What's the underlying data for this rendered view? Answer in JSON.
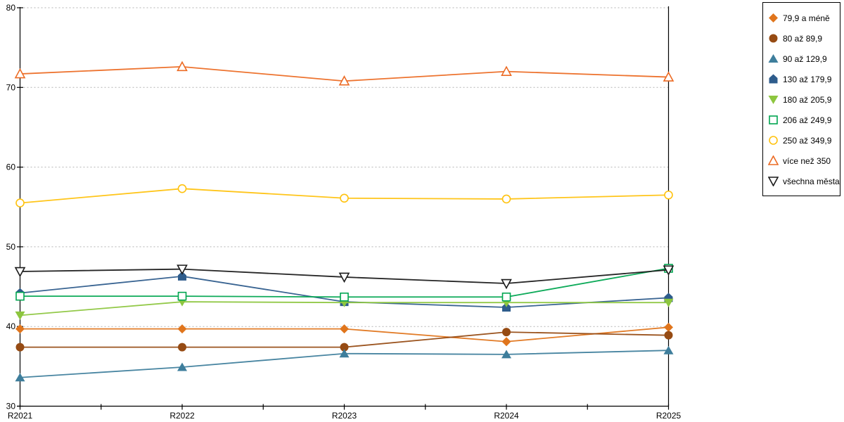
{
  "chart_data": {
    "type": "line",
    "title": "",
    "xlabel": "",
    "ylabel": "",
    "categories": [
      "R2021",
      "R2022",
      "R2023",
      "R2024",
      "R2025"
    ],
    "ylim": [
      30,
      80
    ],
    "yticks": [
      30,
      40,
      50,
      60,
      70,
      80
    ],
    "grid": "horizontal-dotted",
    "gridline_color": "#b3b3b3",
    "axis_color": "#000000",
    "legend_position": "top-right",
    "series": [
      {
        "name": "79,9 a méně",
        "marker": "diamond-filled",
        "color": "#E0751C",
        "values": [
          39.7,
          39.7,
          39.7,
          38.1,
          39.9
        ]
      },
      {
        "name": "80 až 89,9",
        "marker": "circle-filled",
        "color": "#964B13",
        "values": [
          37.4,
          37.4,
          37.4,
          39.3,
          38.9
        ]
      },
      {
        "name": "90 až 129,9",
        "marker": "triangle-up-filled",
        "color": "#3E7E9C",
        "values": [
          33.6,
          34.9,
          36.6,
          36.5,
          37.0
        ]
      },
      {
        "name": "130 až 179,9",
        "marker": "pentagon-filled",
        "color": "#2E5C8C",
        "values": [
          44.2,
          46.3,
          43.1,
          42.4,
          43.6
        ]
      },
      {
        "name": "180 až 205,9",
        "marker": "triangle-down-filled",
        "color": "#8DC63F",
        "values": [
          41.4,
          43.1,
          43.0,
          43.0,
          43.0
        ]
      },
      {
        "name": "206 až 249,9",
        "marker": "square-open",
        "color": "#00A550",
        "values": [
          43.8,
          43.8,
          43.7,
          43.7,
          47.3
        ]
      },
      {
        "name": "250 až 349,9",
        "marker": "circle-open",
        "color": "#FFC20E",
        "values": [
          55.5,
          57.3,
          56.1,
          56.0,
          56.5
        ]
      },
      {
        "name": "více než 350",
        "marker": "triangle-up-open",
        "color": "#EC6B24",
        "values": [
          71.7,
          72.6,
          70.8,
          72.0,
          71.3
        ]
      },
      {
        "name": "všechna města",
        "marker": "triangle-down-open",
        "color": "#1A1A1A",
        "values": [
          46.9,
          47.2,
          46.2,
          45.4,
          47.1
        ]
      }
    ]
  }
}
